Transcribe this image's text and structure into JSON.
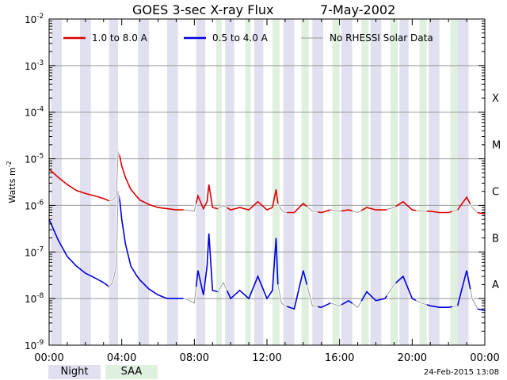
{
  "chart_data": {
    "type": "line",
    "title": "GOES 3-sec X-ray Flux",
    "date": "7-May-2002",
    "ylabel": "Watts m",
    "ylabel_sup": "-2",
    "yscale": "log",
    "ylim": [
      1e-09,
      0.01
    ],
    "xlim_hours": [
      0,
      24
    ],
    "x_ticks": [
      "00:00",
      "04:00",
      "08:00",
      "12:00",
      "16:00",
      "20:00",
      "00:00"
    ],
    "y_ticks": [
      {
        "base": "10",
        "exp": "-9"
      },
      {
        "base": "10",
        "exp": "-8"
      },
      {
        "base": "10",
        "exp": "-7"
      },
      {
        "base": "10",
        "exp": "-6"
      },
      {
        "base": "10",
        "exp": "-5"
      },
      {
        "base": "10",
        "exp": "-4"
      },
      {
        "base": "10",
        "exp": "-3"
      },
      {
        "base": "10",
        "exp": "-2"
      }
    ],
    "flare_classes": [
      {
        "label": "A",
        "exp": -8
      },
      {
        "label": "B",
        "exp": -7
      },
      {
        "label": "C",
        "exp": -6
      },
      {
        "label": "M",
        "exp": -5
      },
      {
        "label": "X",
        "exp": -4
      }
    ],
    "grid_lines_exp": [
      -8,
      -7,
      -6,
      -5,
      -4,
      -3
    ],
    "legend": [
      {
        "label": "1.0 to 8.0 A",
        "color": "#dd0000"
      },
      {
        "label": "0.5 to 4.0 A",
        "color": "#0000dd"
      },
      {
        "label": "No RHESSI Solar Data",
        "color": "#999999"
      }
    ],
    "night_intervals": [
      [
        0.1,
        0.7
      ],
      [
        1.7,
        2.3
      ],
      [
        3.3,
        3.8
      ],
      [
        4.9,
        5.5
      ],
      [
        6.5,
        7.1
      ],
      [
        8.1,
        8.6
      ],
      [
        9.7,
        10.2
      ],
      [
        11.3,
        11.8
      ],
      [
        12.9,
        13.5
      ],
      [
        14.5,
        15.1
      ],
      [
        16.1,
        16.7
      ],
      [
        17.7,
        18.3
      ],
      [
        19.3,
        19.8
      ],
      [
        20.9,
        21.5
      ],
      [
        22.5,
        23.1
      ]
    ],
    "saa_intervals": [
      [
        9.2,
        9.5
      ],
      [
        10.8,
        11.1
      ],
      [
        12.3,
        12.7
      ],
      [
        13.9,
        14.3
      ],
      [
        15.6,
        16.0
      ],
      [
        17.2,
        17.6
      ],
      [
        18.8,
        19.2
      ],
      [
        20.4,
        20.8
      ],
      [
        22.1,
        22.5
      ]
    ],
    "series": [
      {
        "name": "1.0 to 8.0 A",
        "color": "#dd0000",
        "x": [
          0,
          0.5,
          1,
          1.5,
          2,
          2.5,
          3,
          3.3,
          3.5,
          3.7,
          3.8,
          3.9,
          4,
          4.2,
          4.5,
          4.8,
          5,
          5.5,
          6,
          6.5,
          7,
          7.5,
          8,
          8.2,
          8.5,
          8.7,
          8.8,
          9,
          9.3,
          9.6,
          10,
          10.5,
          11,
          11.5,
          12,
          12.3,
          12.5,
          12.6,
          12.8,
          13,
          13.5,
          14,
          14.5,
          15,
          15.5,
          16,
          16.5,
          17,
          17.5,
          18,
          18.5,
          19,
          19.5,
          20,
          20.5,
          21,
          21.5,
          22,
          22.5,
          23,
          23.3,
          23.6,
          24
        ],
        "y": [
          6e-06,
          4e-06,
          2.8e-06,
          2.1e-06,
          1.8e-06,
          1.6e-06,
          1.4e-06,
          1.25e-06,
          1.3e-06,
          1.6e-06,
          1.4e-05,
          1.1e-05,
          7e-06,
          4e-06,
          2.2e-06,
          1.6e-06,
          1.3e-06,
          1.05e-06,
          9e-07,
          8.5e-07,
          8e-07,
          8e-07,
          7.5e-07,
          1.6e-06,
          8.5e-07,
          1.2e-06,
          2.8e-06,
          9e-07,
          8.5e-07,
          1e-06,
          8e-07,
          9e-07,
          8e-07,
          1.2e-06,
          8e-07,
          9e-07,
          2.2e-06,
          1.1e-06,
          8e-07,
          7e-07,
          7e-07,
          1.1e-06,
          7.5e-07,
          7e-07,
          8e-07,
          7.5e-07,
          8e-07,
          7e-07,
          9e-07,
          8e-07,
          8e-07,
          9e-07,
          1.2e-06,
          8e-07,
          7.5e-07,
          7.5e-07,
          7e-07,
          7e-07,
          8e-07,
          1.5e-06,
          9e-07,
          7e-07,
          6.5e-07
        ]
      },
      {
        "name": "0.5 to 4.0 A",
        "color": "#0000dd",
        "x": [
          0,
          0.5,
          1,
          1.5,
          2,
          2.5,
          3,
          3.3,
          3.5,
          3.7,
          3.8,
          3.9,
          4,
          4.2,
          4.5,
          4.8,
          5,
          5.5,
          6,
          6.5,
          7,
          7.5,
          8,
          8.2,
          8.5,
          8.7,
          8.8,
          9,
          9.3,
          9.6,
          10,
          10.5,
          11,
          11.5,
          12,
          12.3,
          12.5,
          12.6,
          12.8,
          13,
          13.5,
          14,
          14.5,
          15,
          15.5,
          16,
          16.5,
          17,
          17.5,
          18,
          18.5,
          19,
          19.5,
          20,
          20.5,
          21,
          21.5,
          22,
          22.5,
          23,
          23.3,
          23.6,
          24
        ],
        "y": [
          5e-07,
          1.8e-07,
          8e-08,
          5e-08,
          3.5e-08,
          2.8e-08,
          2.2e-08,
          1.8e-08,
          2.2e-08,
          5e-08,
          2e-06,
          1.2e-06,
          5e-07,
          1.5e-07,
          5e-08,
          3.2e-08,
          2.5e-08,
          1.6e-08,
          1.2e-08,
          1e-08,
          1e-08,
          1e-08,
          8e-09,
          4e-08,
          1.2e-08,
          5e-08,
          2.5e-07,
          1.5e-08,
          1.4e-08,
          2.2e-08,
          1e-08,
          1.5e-08,
          1e-08,
          3e-08,
          1e-08,
          1.5e-08,
          2e-07,
          2e-08,
          8e-09,
          7e-09,
          6e-09,
          4e-08,
          7e-09,
          6.5e-09,
          8e-09,
          7e-09,
          9e-09,
          6.5e-09,
          1.4e-08,
          9e-09,
          1e-08,
          2e-08,
          3e-08,
          1e-08,
          8e-09,
          7e-09,
          6.5e-09,
          6.5e-09,
          7e-09,
          4e-08,
          1e-08,
          6e-09,
          5.5e-09
        ]
      }
    ],
    "gap_intervals": [
      [
        3.3,
        3.8
      ],
      [
        7.4,
        8.1
      ],
      [
        9.3,
        9.8
      ],
      [
        12.6,
        13.1
      ],
      [
        14.2,
        14.8
      ],
      [
        15.5,
        16.1
      ],
      [
        16.7,
        17.2
      ],
      [
        18.6,
        19.1
      ],
      [
        20.2,
        20.8
      ],
      [
        22.2,
        22.5
      ],
      [
        23.2,
        23.6
      ]
    ]
  },
  "legend_boxes": {
    "night": "Night",
    "saa": "SAA"
  },
  "timestamp": "24-Feb-2015 13:08"
}
